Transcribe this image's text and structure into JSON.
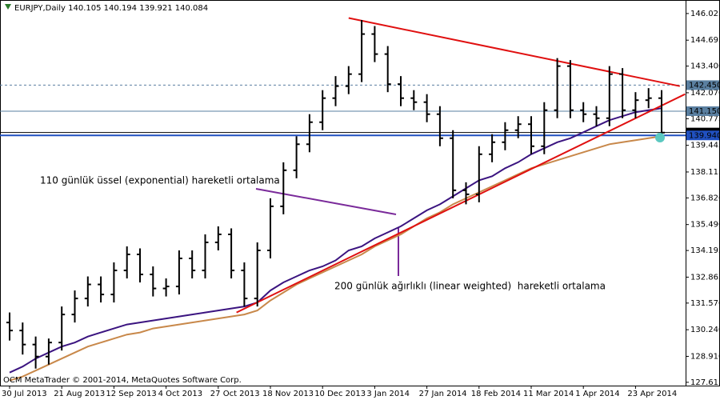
{
  "chart_data": {
    "type": "candlestick",
    "title": "EURJPY,Daily",
    "quote": [
      140.105,
      140.194,
      139.921,
      140.084
    ],
    "footer": "OCM MetaTrader © 2001-2014, MetaQuotes Software Corp.",
    "categories": [
      "30 Jul 2013",
      null,
      null,
      null,
      "21 Aug 2013",
      null,
      null,
      null,
      "12 Sep 2013",
      null,
      null,
      null,
      "4 Oct 2013",
      null,
      null,
      null,
      "27 Oct 2013",
      null,
      null,
      null,
      "18 Nov 2013",
      null,
      null,
      null,
      "10 Dec 2013",
      null,
      null,
      null,
      "3 Jan 2014",
      null,
      null,
      null,
      "27 Jan 2014",
      null,
      null,
      null,
      "18 Feb 2014",
      null,
      null,
      null,
      "11 Mar 2014",
      null,
      null,
      null,
      "1 Apr 2014",
      null,
      null,
      null,
      "23 Apr 2014",
      null,
      null
    ],
    "open": [
      130.6,
      130.2,
      129.5,
      128.9,
      129.6,
      131.0,
      131.8,
      132.5,
      132.0,
      133.2,
      134.0,
      133.0,
      132.3,
      132.4,
      133.8,
      133.2,
      134.6,
      135.0,
      133.2,
      131.8,
      134.2,
      136.4,
      138.2,
      139.5,
      140.6,
      141.8,
      142.4,
      143.0,
      145.0,
      144.0,
      142.5,
      141.8,
      141.6,
      141.0,
      139.8,
      137.2,
      137.0,
      139.0,
      139.6,
      140.2,
      140.5,
      139.4,
      141.2,
      143.4,
      141.2,
      141.0,
      140.8,
      143.0,
      141.2,
      141.7,
      141.8
    ],
    "high": [
      131.1,
      130.6,
      129.9,
      129.8,
      131.4,
      132.2,
      132.9,
      132.9,
      133.6,
      134.4,
      134.3,
      133.4,
      132.8,
      134.2,
      134.2,
      135.0,
      135.4,
      135.3,
      133.6,
      134.6,
      136.8,
      138.6,
      139.9,
      141.0,
      142.2,
      142.9,
      143.4,
      145.7,
      145.4,
      144.4,
      142.9,
      142.2,
      142.0,
      141.4,
      140.2,
      137.6,
      139.4,
      140.0,
      140.6,
      140.9,
      140.9,
      141.6,
      143.8,
      143.7,
      141.6,
      141.4,
      143.4,
      143.3,
      142.1,
      142.3,
      142.2
    ],
    "low": [
      129.7,
      129.0,
      128.3,
      128.5,
      129.2,
      130.6,
      131.4,
      131.6,
      131.6,
      132.8,
      132.6,
      131.9,
      131.9,
      132.0,
      132.8,
      132.8,
      134.2,
      132.8,
      131.4,
      131.4,
      133.8,
      136.0,
      137.8,
      139.1,
      140.2,
      141.4,
      142.0,
      142.6,
      143.6,
      142.1,
      141.4,
      141.2,
      140.6,
      139.4,
      136.8,
      136.5,
      136.6,
      138.6,
      139.2,
      139.8,
      139.0,
      139.0,
      140.8,
      140.8,
      140.6,
      140.4,
      140.4,
      140.8,
      140.8,
      141.3,
      139.92
    ],
    "close": [
      130.2,
      129.5,
      128.9,
      129.6,
      131.0,
      131.8,
      132.5,
      132.0,
      133.2,
      134.0,
      133.0,
      132.3,
      132.4,
      133.8,
      133.2,
      134.6,
      135.0,
      133.2,
      131.8,
      134.2,
      136.4,
      138.2,
      139.5,
      140.6,
      141.8,
      142.4,
      143.0,
      145.0,
      144.0,
      142.5,
      141.8,
      141.6,
      141.0,
      139.8,
      137.2,
      137.0,
      139.0,
      139.6,
      140.2,
      140.5,
      139.4,
      141.2,
      143.4,
      141.2,
      141.0,
      140.8,
      143.0,
      141.2,
      141.7,
      141.8,
      140.08
    ],
    "color": "#000000",
    "series": [
      {
        "name": "110 günlük üssel (exponential) hareketli ortalama",
        "color": "#3b1480",
        "label_color": "#7a2a9a",
        "values": [
          128.1,
          128.4,
          128.8,
          129.1,
          129.4,
          129.6,
          129.9,
          130.1,
          130.3,
          130.5,
          130.6,
          130.7,
          130.8,
          130.9,
          131.0,
          131.1,
          131.2,
          131.3,
          131.4,
          131.6,
          132.2,
          132.6,
          132.9,
          133.2,
          133.4,
          133.7,
          134.2,
          134.4,
          134.8,
          135.1,
          135.4,
          135.8,
          136.2,
          136.5,
          136.9,
          137.3,
          137.7,
          137.9,
          138.3,
          138.6,
          139.0,
          139.3,
          139.6,
          139.8,
          140.1,
          140.4,
          140.7,
          140.9,
          141.1,
          141.2,
          141.3
        ]
      },
      {
        "name": "200 günlük ağırlıklı (linear weighted)  hareketli ortalama",
        "color": "#c8884a",
        "label_color": "#d08848",
        "values": [
          127.7,
          127.9,
          128.2,
          128.5,
          128.8,
          129.1,
          129.4,
          129.6,
          129.8,
          130.0,
          130.1,
          130.3,
          130.4,
          130.5,
          130.6,
          130.7,
          130.8,
          130.9,
          131.0,
          131.2,
          131.7,
          132.1,
          132.5,
          132.8,
          133.1,
          133.4,
          133.7,
          134.0,
          134.4,
          134.7,
          135.0,
          135.4,
          135.8,
          136.1,
          136.5,
          136.8,
          137.1,
          137.4,
          137.7,
          138.0,
          138.3,
          138.5,
          138.7,
          138.9,
          139.1,
          139.3,
          139.5,
          139.6,
          139.7,
          139.8,
          139.9
        ]
      }
    ],
    "trendlines": [
      {
        "color": "#e01010",
        "x": [
          26,
          51.4
        ],
        "values": [
          145.8,
          142.4
        ]
      },
      {
        "color": "#e01010",
        "x": [
          17.4,
          51.8
        ],
        "values": [
          131.1,
          142.0
        ]
      }
    ],
    "levels": [
      {
        "value": 142.45,
        "label": "142.450",
        "color": "#5a7fa0",
        "dashed": true
      },
      {
        "value": 141.15,
        "label": "141.150",
        "color": "#5a7fa0",
        "dashed": false
      },
      {
        "value": 140.084,
        "label": "140.084",
        "color": "#000000",
        "dashed": false
      },
      {
        "value": 139.94,
        "label": "139.940",
        "color": "#2050c0",
        "dashed": false
      }
    ],
    "ylim": [
      127.45,
      146.7
    ],
    "yticks": [
      {
        "value": 127.615,
        "label": "127.615"
      },
      {
        "value": 128.91,
        "label": "128.910"
      },
      {
        "value": 130.24,
        "label": "130.240"
      },
      {
        "value": 131.57,
        "label": "131.570"
      },
      {
        "value": 132.865,
        "label": "132.865"
      },
      {
        "value": 134.195,
        "label": "134.195"
      },
      {
        "value": 135.49,
        "label": "135.490"
      },
      {
        "value": 136.82,
        "label": "136.820"
      },
      {
        "value": 138.115,
        "label": "138.115"
      },
      {
        "value": 139.445,
        "label": "139.445"
      },
      {
        "value": 140.775,
        "label": "140.775"
      },
      {
        "value": 142.07,
        "label": "142.070"
      },
      {
        "value": 143.4,
        "label": "143.400"
      },
      {
        "value": 144.695,
        "label": "144.695"
      },
      {
        "value": 146.025,
        "label": "146.025"
      }
    ]
  }
}
